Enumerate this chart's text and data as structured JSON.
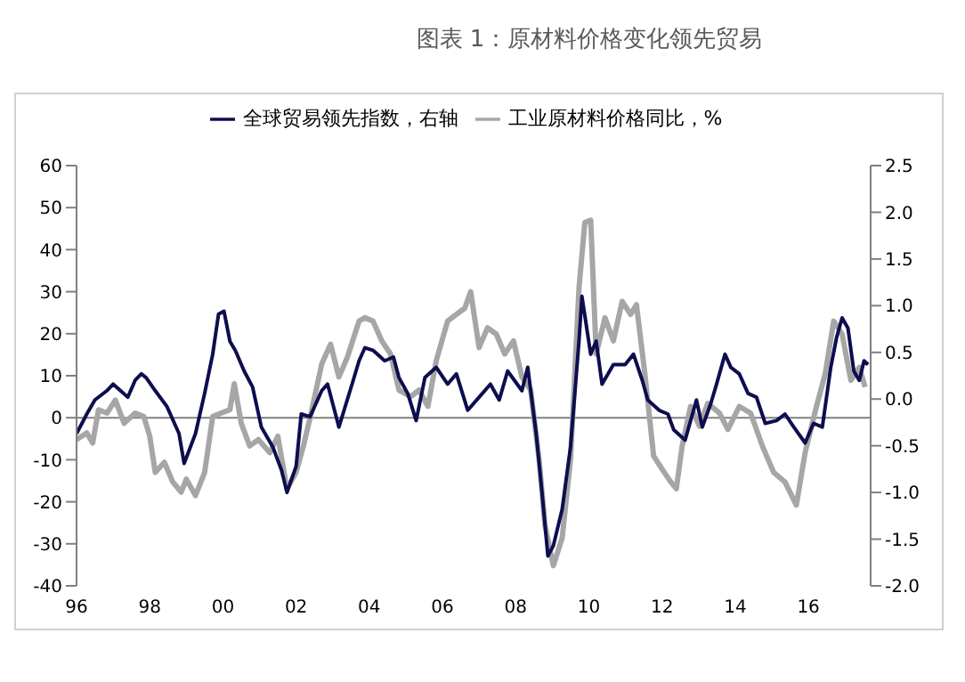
{
  "chart_data": {
    "type": "line",
    "title": "图表 1：原材料价格变化领先贸易",
    "xlim": [
      1996,
      2017.7
    ],
    "xticks": [
      {
        "value": 1996,
        "label": "96"
      },
      {
        "value": 1998,
        "label": "98"
      },
      {
        "value": 2000,
        "label": "00"
      },
      {
        "value": 2002,
        "label": "02"
      },
      {
        "value": 2004,
        "label": "04"
      },
      {
        "value": 2006,
        "label": "06"
      },
      {
        "value": 2008,
        "label": "08"
      },
      {
        "value": 2010,
        "label": "10"
      },
      {
        "value": 2012,
        "label": "12"
      },
      {
        "value": 2014,
        "label": "14"
      },
      {
        "value": 2016,
        "label": "16"
      }
    ],
    "ylim": [
      -40,
      60
    ],
    "yticks": [
      -40,
      -30,
      -20,
      -10,
      0,
      10,
      20,
      30,
      40,
      50,
      60
    ],
    "y2lim": [
      -2,
      2.5
    ],
    "y2ticks": [
      {
        "value": -2,
        "label": "-2.0"
      },
      {
        "value": -1.5,
        "label": "-1.5"
      },
      {
        "value": -1,
        "label": "-1.0"
      },
      {
        "value": -0.5,
        "label": "-0.5"
      },
      {
        "value": 0,
        "label": "0.0"
      },
      {
        "value": 0.5,
        "label": "0.5"
      },
      {
        "value": 1,
        "label": "1.0"
      },
      {
        "value": 1.5,
        "label": "1.5"
      },
      {
        "value": 2,
        "label": "2.0"
      },
      {
        "value": 2.5,
        "label": "2.5"
      }
    ],
    "grid": false,
    "legend": "top",
    "marker": "none",
    "line_style": "solid",
    "ref_lines": [
      {
        "axis": "y",
        "value": 0,
        "color": "#808080"
      }
    ],
    "series": [
      {
        "name": "工业原材料价格同比，%",
        "color": "#a6a6a6",
        "x": [
          1996.0,
          1996.28,
          1996.44,
          1996.6,
          1996.83,
          1997.06,
          1997.3,
          1997.6,
          1997.84,
          1998.0,
          1998.15,
          1998.4,
          1998.63,
          1998.86,
          1999.0,
          1999.25,
          1999.5,
          1999.72,
          1999.95,
          2000.19,
          2000.31,
          2000.5,
          2000.73,
          2000.97,
          2001.28,
          2001.5,
          2001.75,
          2002.0,
          2002.2,
          2002.39,
          2002.7,
          2002.94,
          2003.17,
          2003.4,
          2003.72,
          2003.88,
          2004.1,
          2004.34,
          2004.58,
          2004.81,
          2005.13,
          2005.36,
          2005.6,
          2005.83,
          2006.14,
          2006.38,
          2006.61,
          2006.77,
          2007.0,
          2007.23,
          2007.47,
          2007.7,
          2007.94,
          2008.17,
          2008.41,
          2008.64,
          2008.8,
          2009.03,
          2009.27,
          2009.5,
          2009.73,
          2009.89,
          2010.05,
          2010.2,
          2010.44,
          2010.67,
          2010.91,
          2011.14,
          2011.3,
          2011.53,
          2011.77,
          2012.0,
          2012.24,
          2012.39,
          2012.55,
          2012.78,
          2013.02,
          2013.25,
          2013.57,
          2013.8,
          2014.11,
          2014.42,
          2014.74,
          2015.05,
          2015.36,
          2015.67,
          2015.91,
          2016.22,
          2016.46,
          2016.69,
          2016.92,
          2017.16,
          2017.39,
          2017.55
        ],
        "values": [
          -5.2,
          -3.6,
          -6,
          1.9,
          1.1,
          4.2,
          -1.3,
          1.1,
          0.3,
          -4.4,
          -13,
          -10.6,
          -15.3,
          -17.7,
          -14.6,
          -18.5,
          -13,
          0.3,
          1.1,
          1.9,
          8.1,
          -1.3,
          -6.7,
          -5.2,
          -8.3,
          -4.4,
          -16.9,
          -13,
          -6.7,
          0.3,
          12.8,
          17.5,
          9.7,
          14.4,
          23,
          23.8,
          23,
          18.3,
          15.2,
          6.6,
          5,
          6.6,
          2.7,
          13.6,
          23,
          24.6,
          26.1,
          30,
          16.7,
          21.4,
          19.9,
          15.2,
          18.3,
          9.7,
          6.6,
          -9.9,
          -25.5,
          -35.2,
          -28.6,
          -9.9,
          30.8,
          46.5,
          47,
          15.2,
          23.8,
          18.3,
          27.7,
          24.6,
          26.9,
          10.5,
          -9.1,
          -12.2,
          -15.3,
          -16.9,
          -6.7,
          2.7,
          -2,
          3.4,
          1.1,
          -2.8,
          2.7,
          1.1,
          -6.7,
          -13,
          -15.3,
          -20.8,
          -8.3,
          2.7,
          10.5,
          23,
          19.9,
          8.9,
          12,
          7.3
        ]
      },
      {
        "name": "全球贸易领先指数，右轴",
        "color": "#0d0d4f",
        "axis": "y2",
        "x": [
          1996.0,
          1996.28,
          1996.5,
          1996.83,
          1997.0,
          1997.2,
          1997.4,
          1997.6,
          1997.77,
          1997.9,
          1998.15,
          1998.47,
          1998.8,
          1998.94,
          1999.25,
          1999.5,
          1999.72,
          1999.88,
          2000.03,
          2000.19,
          2000.34,
          2000.58,
          2000.81,
          2001.05,
          2001.36,
          2001.6,
          2001.75,
          2002.0,
          2002.14,
          2002.38,
          2002.7,
          2002.86,
          2003.17,
          2003.56,
          2003.72,
          2003.88,
          2004.11,
          2004.42,
          2004.66,
          2004.81,
          2005.05,
          2005.28,
          2005.52,
          2005.83,
          2006.14,
          2006.38,
          2006.69,
          2007.0,
          2007.31,
          2007.55,
          2007.78,
          2008.17,
          2008.33,
          2008.56,
          2008.72,
          2008.88,
          2009.03,
          2009.27,
          2009.5,
          2009.73,
          2009.81,
          2010.05,
          2010.2,
          2010.36,
          2010.67,
          2010.99,
          2011.22,
          2011.46,
          2011.61,
          2011.92,
          2012.16,
          2012.32,
          2012.63,
          2012.94,
          2013.1,
          2013.33,
          2013.49,
          2013.72,
          2013.88,
          2014.11,
          2014.35,
          2014.58,
          2014.82,
          2015.13,
          2015.36,
          2015.6,
          2015.91,
          2016.14,
          2016.38,
          2016.61,
          2016.77,
          2016.92,
          2017.08,
          2017.24,
          2017.39,
          2017.52,
          2017.63
        ],
        "values": [
          -0.37,
          -0.16,
          -0.01,
          0.09,
          0.16,
          0.09,
          0.02,
          0.2,
          0.27,
          0.23,
          0.09,
          -0.08,
          -0.37,
          -0.69,
          -0.37,
          0.06,
          0.48,
          0.91,
          0.94,
          0.62,
          0.52,
          0.3,
          0.13,
          -0.3,
          -0.51,
          -0.76,
          -1.0,
          -0.72,
          -0.16,
          -0.19,
          0.09,
          0.16,
          -0.3,
          0.2,
          0.41,
          0.55,
          0.52,
          0.41,
          0.45,
          0.23,
          0.06,
          -0.23,
          0.23,
          0.34,
          0.16,
          0.27,
          -0.12,
          0.02,
          0.16,
          -0.01,
          0.3,
          0.09,
          0.34,
          -0.37,
          -1.0,
          -1.68,
          -1.57,
          -1.18,
          -0.51,
          0.62,
          1.1,
          0.48,
          0.62,
          0.16,
          0.37,
          0.37,
          0.48,
          0.2,
          -0.01,
          -0.12,
          -0.16,
          -0.33,
          -0.44,
          -0.01,
          -0.3,
          -0.05,
          0.16,
          0.48,
          0.34,
          0.27,
          0.06,
          0.02,
          -0.26,
          -0.23,
          -0.16,
          -0.3,
          -0.47,
          -0.26,
          -0.3,
          0.34,
          0.66,
          0.87,
          0.76,
          0.3,
          0.2,
          0.41,
          0.37
        ]
      }
    ]
  }
}
